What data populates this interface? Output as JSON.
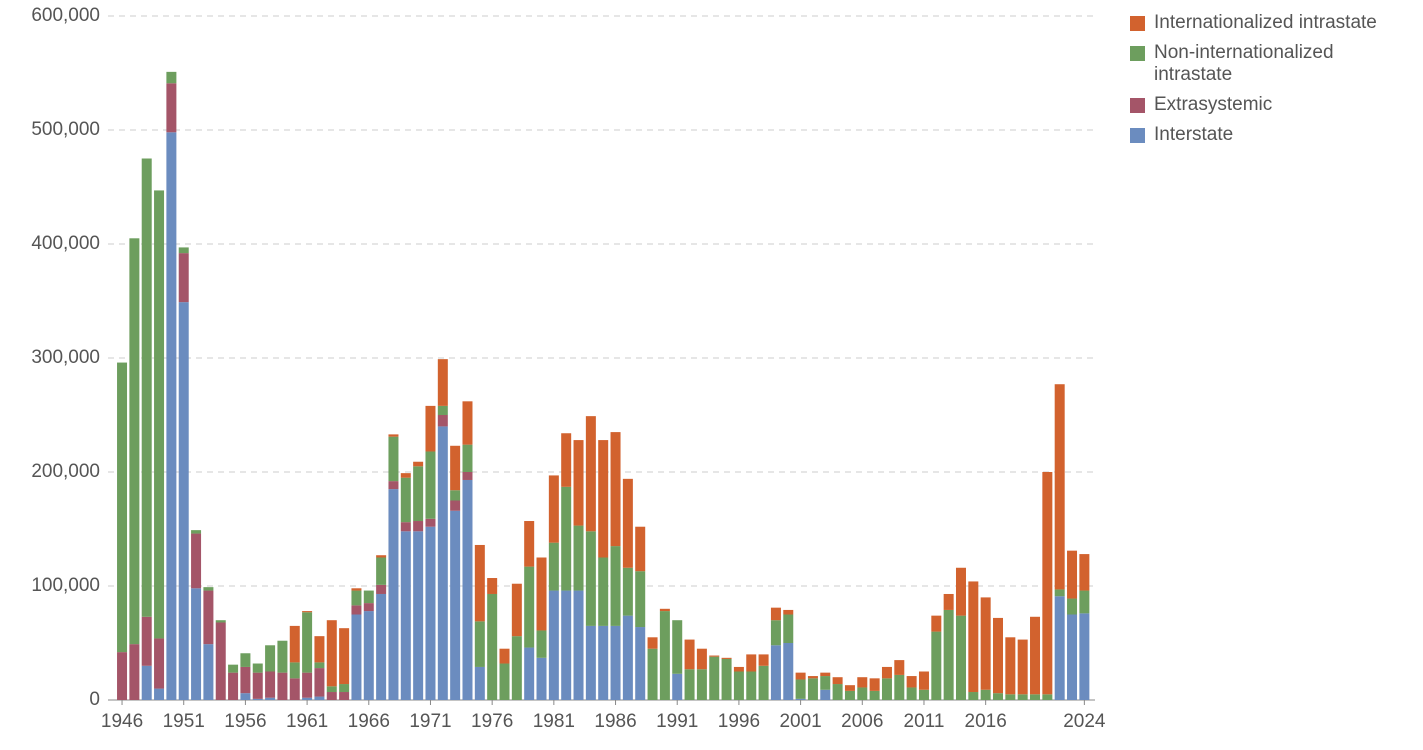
{
  "chart_data": {
    "type": "stacked-bar",
    "x": [
      1946,
      1947,
      1948,
      1949,
      1950,
      1951,
      1952,
      1953,
      1954,
      1955,
      1956,
      1957,
      1958,
      1959,
      1960,
      1961,
      1962,
      1963,
      1964,
      1965,
      1966,
      1967,
      1968,
      1969,
      1970,
      1971,
      1972,
      1973,
      1974,
      1975,
      1976,
      1977,
      1978,
      1979,
      1980,
      1981,
      1982,
      1983,
      1984,
      1985,
      1986,
      1987,
      1988,
      1989,
      1990,
      1991,
      1992,
      1993,
      1994,
      1995,
      1996,
      1997,
      1998,
      1999,
      2000,
      2001,
      2002,
      2003,
      2004,
      2005,
      2006,
      2007,
      2008,
      2009,
      2010,
      2011,
      2012,
      2013,
      2014,
      2015,
      2016,
      2017,
      2018,
      2019,
      2020,
      2021,
      2022,
      2023,
      2024
    ],
    "series": [
      {
        "name": "Interstate",
        "color": "#6b8cbf",
        "values": [
          0,
          0,
          30000,
          10000,
          498000,
          349000,
          98000,
          49000,
          0,
          0,
          6000,
          1000,
          2000,
          0,
          0,
          2000,
          3000,
          0,
          0,
          75000,
          78000,
          93000,
          185000,
          148000,
          148000,
          152000,
          240000,
          166000,
          193000,
          29000,
          0,
          0,
          0,
          46000,
          37000,
          96000,
          96000,
          96000,
          65000,
          65000,
          65000,
          74000,
          64000,
          0,
          0,
          23000,
          0,
          0,
          0,
          0,
          0,
          0,
          0,
          48000,
          50000,
          1000,
          0,
          9000,
          0,
          0,
          0,
          0,
          0,
          0,
          0,
          0,
          0,
          0,
          0,
          0,
          0,
          0,
          0,
          0,
          0,
          0,
          91000,
          75000,
          76000
        ]
      },
      {
        "name": "Extrasystemic",
        "color": "#a45568",
        "values": [
          42000,
          49000,
          43000,
          44000,
          43000,
          43000,
          48000,
          47000,
          68000,
          24000,
          23000,
          23000,
          23000,
          24000,
          19000,
          22000,
          25000,
          7000,
          7000,
          8000,
          7000,
          8000,
          7000,
          8000,
          9000,
          7000,
          10000,
          9000,
          7000,
          0,
          0,
          0,
          0,
          0,
          0,
          0,
          0,
          0,
          0,
          0,
          0,
          0,
          0,
          0,
          0,
          0,
          0,
          0,
          0,
          0,
          0,
          0,
          0,
          0,
          0,
          0,
          0,
          0,
          0,
          0,
          0,
          0,
          0,
          0,
          0,
          0,
          0,
          0,
          0,
          0,
          0,
          0,
          0,
          0,
          0,
          0,
          0,
          0,
          0
        ]
      },
      {
        "name": "Non-internationalized intrastate",
        "color": "#6d9e5e",
        "values": [
          254000,
          356000,
          402000,
          393000,
          10000,
          5000,
          3000,
          3000,
          2000,
          7000,
          12000,
          8000,
          23000,
          28000,
          14000,
          53000,
          5000,
          5000,
          7000,
          13000,
          11000,
          24000,
          39000,
          39000,
          48000,
          59000,
          8000,
          9000,
          24000,
          40000,
          93000,
          32000,
          56000,
          71000,
          24000,
          42000,
          91000,
          57000,
          83000,
          60000,
          70000,
          42000,
          49000,
          45000,
          78000,
          47000,
          27000,
          27000,
          38000,
          36000,
          25000,
          25000,
          30000,
          22000,
          25000,
          17000,
          19000,
          12000,
          14000,
          8000,
          11000,
          8000,
          19000,
          22000,
          11000,
          9000,
          60000,
          79000,
          74000,
          7000,
          9000,
          6000,
          5000,
          5000,
          5000,
          5000,
          6000,
          14000,
          20000
        ]
      },
      {
        "name": "Internationalized intrastate",
        "color": "#d2622e",
        "values": [
          0,
          0,
          0,
          0,
          0,
          0,
          0,
          0,
          0,
          0,
          0,
          0,
          0,
          0,
          32000,
          1000,
          23000,
          58000,
          49000,
          2000,
          0,
          2000,
          2000,
          4000,
          4000,
          40000,
          41000,
          39000,
          38000,
          67000,
          14000,
          13000,
          46000,
          40000,
          64000,
          59000,
          47000,
          75000,
          101000,
          103000,
          100000,
          78000,
          39000,
          10000,
          2000,
          0,
          26000,
          18000,
          1000,
          1000,
          4000,
          15000,
          10000,
          11000,
          4000,
          6000,
          2000,
          3000,
          6000,
          5000,
          9000,
          11000,
          10000,
          13000,
          10000,
          16000,
          14000,
          14000,
          42000,
          97000,
          81000,
          66000,
          50000,
          48000,
          68000,
          195000,
          180000,
          42000,
          32000
        ]
      }
    ],
    "xlim": [
      1945,
      2025
    ],
    "xticks": [
      1946,
      1951,
      1956,
      1961,
      1966,
      1971,
      1976,
      1981,
      1986,
      1991,
      1996,
      2001,
      2006,
      2011,
      2016,
      2024
    ],
    "ylim": [
      0,
      600000
    ],
    "yticks": [
      0,
      {
        "value": 100000,
        "label": "100,000"
      },
      {
        "value": 200000,
        "label": "200,000"
      },
      {
        "value": 300000,
        "label": "300,000"
      },
      {
        "value": 400000,
        "label": "400,000"
      },
      {
        "value": 500000,
        "label": "500,000"
      },
      {
        "value": 600000,
        "label": "600,000"
      }
    ],
    "grid": true,
    "legend": "right"
  }
}
